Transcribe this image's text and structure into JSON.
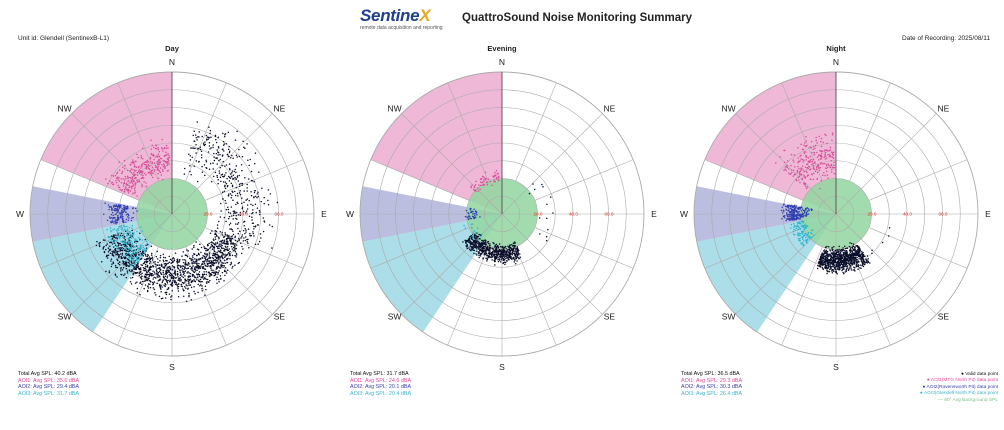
{
  "header": {
    "logo_word": "Sentine",
    "logo_x": "X",
    "logo_tagline": "remote data acquisition and reporting",
    "title": "QuattroSound Noise Monitoring Summary",
    "unit_id": "Unit id: Glendell (SentinexB-L1)",
    "date_of_recording": "Date of Recording: 2025/08/11"
  },
  "colors": {
    "ao1": "#e8a0c8",
    "ao2": "#a6a8d6",
    "ao3": "#8fd3e0",
    "background_circle": "#92d6a0",
    "valid_point": "#0b0f2a",
    "ring_label": "#e03020",
    "grid": "#aaaaaa"
  },
  "chart_data": [
    {
      "type": "scatter",
      "subtype": "polar",
      "title": "Day",
      "directions": [
        "N",
        "NE",
        "E",
        "SE",
        "S",
        "SW",
        "W",
        "NW"
      ],
      "radial_ticks": [
        20.0,
        40.0,
        60.0
      ],
      "radial_range": [
        0,
        80
      ],
      "background_spl": 20,
      "sectors": [
        {
          "name": "AO1",
          "from_deg": 292.5,
          "to_deg": 360
        },
        {
          "name": "AO2",
          "from_deg": 258.75,
          "to_deg": 281.25
        },
        {
          "name": "AO3",
          "from_deg": 213.75,
          "to_deg": 258.75
        }
      ],
      "clusters": [
        {
          "series": "Valid data point",
          "dir_min": 110,
          "dir_max": 250,
          "spl_min": 19,
          "spl_max": 52,
          "count": 1400
        },
        {
          "series": "Valid data point",
          "dir_min": 15,
          "dir_max": 110,
          "spl_min": 20,
          "spl_max": 64,
          "count": 380
        },
        {
          "series": "AO1",
          "dir_min": 295,
          "dir_max": 358,
          "spl_min": 18,
          "spl_max": 45,
          "count": 320
        },
        {
          "series": "AO2",
          "dir_min": 260,
          "dir_max": 280,
          "spl_min": 19,
          "spl_max": 40,
          "count": 160
        },
        {
          "series": "AO3",
          "dir_min": 215,
          "dir_max": 258,
          "spl_min": 18,
          "spl_max": 42,
          "count": 200
        }
      ],
      "summary": {
        "total": "Total Avg SPL: 40.2 dBA",
        "ao1": "AOI1: Avg SPL: 35.6 dBA",
        "ao2": "AOI2: Avg SPL: 29.4 dBA",
        "ao3": "AOI3: Avg SPL: 31.7 dBA"
      }
    },
    {
      "type": "scatter",
      "subtype": "polar",
      "title": "Evening",
      "directions": [
        "N",
        "NE",
        "E",
        "SE",
        "S",
        "SW",
        "W",
        "NW"
      ],
      "radial_ticks": [
        20.0,
        40.0,
        60.0
      ],
      "radial_range": [
        0,
        80
      ],
      "background_spl": 20,
      "sectors": [
        {
          "name": "AO1",
          "from_deg": 292.5,
          "to_deg": 360
        },
        {
          "name": "AO2",
          "from_deg": 258.75,
          "to_deg": 281.25
        },
        {
          "name": "AO3",
          "from_deg": 213.75,
          "to_deg": 258.75
        }
      ],
      "clusters": [
        {
          "series": "Valid data point",
          "dir_min": 155,
          "dir_max": 235,
          "spl_min": 15,
          "spl_max": 30,
          "count": 650
        },
        {
          "series": "Valid data point",
          "dir_min": 40,
          "dir_max": 130,
          "spl_min": 16,
          "spl_max": 36,
          "count": 14
        },
        {
          "series": "AO1",
          "dir_min": 310,
          "dir_max": 355,
          "spl_min": 16,
          "spl_max": 26,
          "count": 60
        },
        {
          "series": "AO2",
          "dir_min": 260,
          "dir_max": 280,
          "spl_min": 12,
          "spl_max": 22,
          "count": 40
        },
        {
          "series": "AO3",
          "dir_min": 220,
          "dir_max": 255,
          "spl_min": 14,
          "spl_max": 24,
          "count": 20
        }
      ],
      "summary": {
        "total": "Total Avg SPL: 31.7 dBA",
        "ao1": "AOI1: Avg SPL: 24.6 dBA",
        "ao2": "AOI2: Avg SPL: 20.1 dBA",
        "ao3": "AOI3: Avg SPL: 20.4 dBA"
      }
    },
    {
      "type": "scatter",
      "subtype": "polar",
      "title": "Night",
      "directions": [
        "N",
        "NE",
        "E",
        "SE",
        "S",
        "SW",
        "W",
        "NW"
      ],
      "radial_ticks": [
        20.0,
        40.0,
        60.0
      ],
      "radial_range": [
        0,
        80
      ],
      "background_spl": 20,
      "sectors": [
        {
          "name": "AO1",
          "from_deg": 292.5,
          "to_deg": 360
        },
        {
          "name": "AO2",
          "from_deg": 258.75,
          "to_deg": 281.25
        },
        {
          "name": "AO3",
          "from_deg": 213.75,
          "to_deg": 258.75
        }
      ],
      "clusters": [
        {
          "series": "Valid data point",
          "dir_min": 145,
          "dir_max": 200,
          "spl_min": 17,
          "spl_max": 36,
          "count": 900
        },
        {
          "series": "Valid data point",
          "dir_min": 100,
          "dir_max": 150,
          "spl_min": 22,
          "spl_max": 38,
          "count": 12
        },
        {
          "series": "AO1",
          "dir_min": 310,
          "dir_max": 358,
          "spl_min": 16,
          "spl_max": 50,
          "count": 260
        },
        {
          "series": "AO2",
          "dir_min": 262,
          "dir_max": 282,
          "spl_min": 12,
          "spl_max": 34,
          "count": 220
        },
        {
          "series": "AO3",
          "dir_min": 225,
          "dir_max": 258,
          "spl_min": 14,
          "spl_max": 30,
          "count": 120
        }
      ],
      "summary": {
        "total": "Total Avg SPL: 36.5 dBA",
        "ao1": "AOI1: Avg SPL: 29.3 dBA",
        "ao2": "AOI2: Avg SPL: 30.3 dBA",
        "ao3": "AOI3: Avg SPL: 26.4 dBA"
      }
    }
  ],
  "legend": {
    "valid": "Valid data point",
    "ao1": "AOI1(MTO North Pit) data point",
    "ao2": "AOI2(Ravensworth Pit) data point",
    "ao3": "AOI3(Glendell North Pit) data point",
    "background": "90° Avg Background SPL"
  }
}
